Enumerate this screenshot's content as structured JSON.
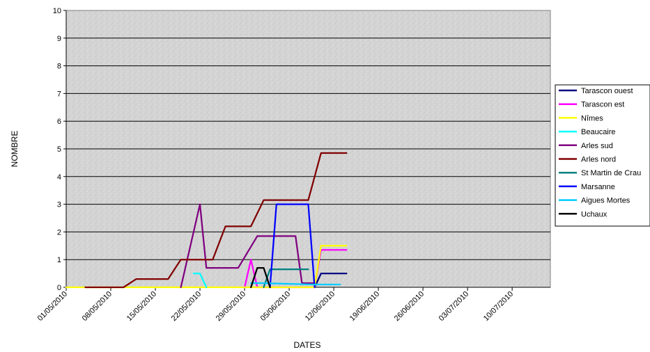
{
  "chart_data": {
    "type": "line",
    "title": "",
    "xlabel": "DATES",
    "ylabel": "NOMBRE",
    "ylim": [
      0,
      10
    ],
    "y_ticks": [
      "0",
      "1",
      "2",
      "3",
      "4",
      "5",
      "6",
      "7",
      "8",
      "9",
      "10"
    ],
    "xlim": [
      "2010-05-01",
      "2010-07-16"
    ],
    "x_ticks": [
      "01/05/2010",
      "08/05/2010",
      "15/05/2010",
      "22/05/2010",
      "29/05/2010",
      "05/06/2010",
      "12/06/2010",
      "19/06/2010",
      "26/06/2010",
      "03/07/2010",
      "10/07/2010"
    ],
    "grid": "horizontal",
    "legend_position": "right",
    "series": [
      {
        "name": "Tarascon ouest",
        "color": "#000080",
        "points": [
          [
            "2010-06-09",
            0
          ],
          [
            "2010-06-10",
            0.5
          ],
          [
            "2010-06-14",
            0.5
          ]
        ]
      },
      {
        "name": "Tarascon est",
        "color": "#ff00ff",
        "points": [
          [
            "2010-05-29",
            0
          ],
          [
            "2010-05-30",
            1
          ],
          [
            "2010-05-31",
            0
          ],
          [
            "2010-06-09",
            0
          ],
          [
            "2010-06-10",
            1.35
          ],
          [
            "2010-06-14",
            1.35
          ]
        ]
      },
      {
        "name": "Nîmes",
        "color": "#ffff00",
        "points": [
          [
            "2010-05-01",
            0
          ],
          [
            "2010-05-02",
            0
          ],
          [
            "2010-06-09",
            0
          ],
          [
            "2010-06-10",
            1.5
          ],
          [
            "2010-06-14",
            1.5
          ]
        ]
      },
      {
        "name": "Beaucaire",
        "color": "#00ffff",
        "points": [
          [
            "2010-05-21",
            0.5
          ],
          [
            "2010-05-22",
            0.5
          ],
          [
            "2010-05-23",
            0
          ]
        ]
      },
      {
        "name": "Arles sud",
        "color": "#800080",
        "points": [
          [
            "2010-05-19",
            0
          ],
          [
            "2010-05-22",
            3
          ],
          [
            "2010-05-23",
            0.7
          ],
          [
            "2010-05-28",
            0.7
          ],
          [
            "2010-05-31",
            1.85
          ],
          [
            "2010-06-06",
            1.85
          ],
          [
            "2010-06-07",
            0.15
          ],
          [
            "2010-06-09",
            0.15
          ]
        ]
      },
      {
        "name": "Arles nord",
        "color": "#800000",
        "points": [
          [
            "2010-05-04",
            0
          ],
          [
            "2010-05-10",
            0
          ],
          [
            "2010-05-12",
            0.3
          ],
          [
            "2010-05-17",
            0.3
          ],
          [
            "2010-05-19",
            1
          ],
          [
            "2010-05-24",
            1
          ],
          [
            "2010-05-26",
            2.2
          ],
          [
            "2010-05-30",
            2.2
          ],
          [
            "2010-06-01",
            3.15
          ],
          [
            "2010-06-08",
            3.15
          ],
          [
            "2010-06-10",
            4.85
          ],
          [
            "2010-06-14",
            4.85
          ]
        ]
      },
      {
        "name": "St Martin de Crau",
        "color": "#008080",
        "points": [
          [
            "2010-06-01",
            0
          ],
          [
            "2010-06-02",
            0.65
          ],
          [
            "2010-06-08",
            0.65
          ]
        ]
      },
      {
        "name": "Marsanne",
        "color": "#0000ff",
        "points": [
          [
            "2010-06-02",
            0
          ],
          [
            "2010-06-03",
            3
          ],
          [
            "2010-06-08",
            3
          ],
          [
            "2010-06-09",
            0
          ]
        ]
      },
      {
        "name": "Aigues Mortes",
        "color": "#00ccff",
        "points": [
          [
            "2010-05-30",
            0.15
          ],
          [
            "2010-06-01",
            0.15
          ],
          [
            "2010-06-09",
            0.1
          ],
          [
            "2010-06-13",
            0.1
          ]
        ]
      },
      {
        "name": "Uchaux",
        "color": "#000000",
        "points": [
          [
            "2010-05-30",
            0
          ],
          [
            "2010-05-31",
            0.7
          ],
          [
            "2010-06-01",
            0.7
          ],
          [
            "2010-06-02",
            0
          ]
        ]
      }
    ]
  }
}
